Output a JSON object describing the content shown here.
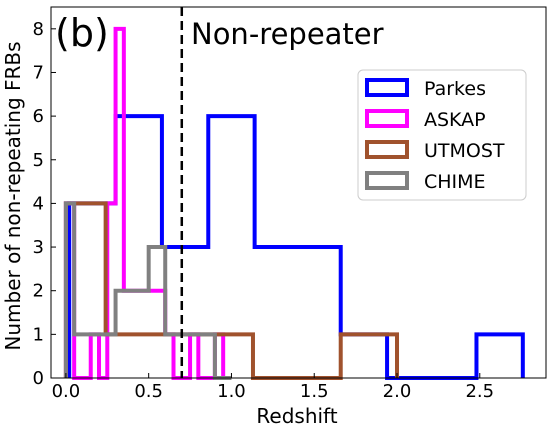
{
  "chart_data": {
    "type": "histogram",
    "panel_label": "(b)",
    "annotation": "Non-repeater",
    "xlabel": "Redshift",
    "ylabel": "Number of non-repeating FRBs",
    "xlim": [
      -0.09,
      2.9
    ],
    "ylim": [
      0,
      8.5
    ],
    "xticks": [
      0.0,
      0.5,
      1.0,
      1.5,
      2.0,
      2.5
    ],
    "xtick_labels": [
      "0.0",
      "0.5",
      "1.0",
      "1.5",
      "2.0",
      "2.5"
    ],
    "yticks": [
      0,
      1,
      2,
      3,
      4,
      5,
      6,
      7,
      8
    ],
    "ytick_labels": [
      "0",
      "1",
      "2",
      "3",
      "4",
      "5",
      "6",
      "7",
      "8"
    ],
    "reference_line": {
      "x": 0.7,
      "style": "dashed"
    },
    "legend_position": "upper-right",
    "series": [
      {
        "name": "Parkes",
        "color": "#0000ff",
        "bin_edges": [
          0.02,
          0.3,
          0.58,
          0.86,
          1.14,
          1.42,
          1.66,
          1.94,
          2.22,
          2.48,
          2.76
        ],
        "counts": [
          4,
          6,
          3,
          6,
          3,
          3,
          1,
          0,
          0,
          1
        ]
      },
      {
        "name": "ASKAP",
        "color": "#ff00ff",
        "bin_edges": [
          0.0,
          0.05,
          0.1,
          0.15,
          0.2,
          0.25,
          0.3,
          0.35,
          0.4,
          0.45,
          0.5,
          0.55,
          0.6,
          0.65,
          0.7,
          0.75,
          0.8,
          0.85,
          0.9,
          0.95
        ],
        "counts": [
          4,
          0,
          0,
          1,
          0,
          4,
          8,
          2,
          2,
          2,
          2,
          2,
          1,
          0,
          0,
          1,
          0,
          0,
          1
        ]
      },
      {
        "name": "UTMOST",
        "color": "#a0522d",
        "bin_edges": [
          0.0,
          0.24,
          0.42,
          0.6,
          0.78,
          0.95,
          1.13,
          1.3,
          1.48,
          1.66,
          1.83,
          2.0
        ],
        "counts": [
          4,
          1,
          1,
          1,
          1,
          1,
          0,
          0,
          0,
          1,
          1
        ]
      },
      {
        "name": "CHIME",
        "color": "#808080",
        "bin_edges": [
          0.0,
          0.05,
          0.1,
          0.2,
          0.3,
          0.5,
          0.6,
          0.7,
          0.8,
          0.9,
          1.0
        ],
        "counts": [
          4,
          1,
          1,
          1,
          2,
          3,
          1,
          1,
          1,
          0
        ]
      }
    ]
  }
}
